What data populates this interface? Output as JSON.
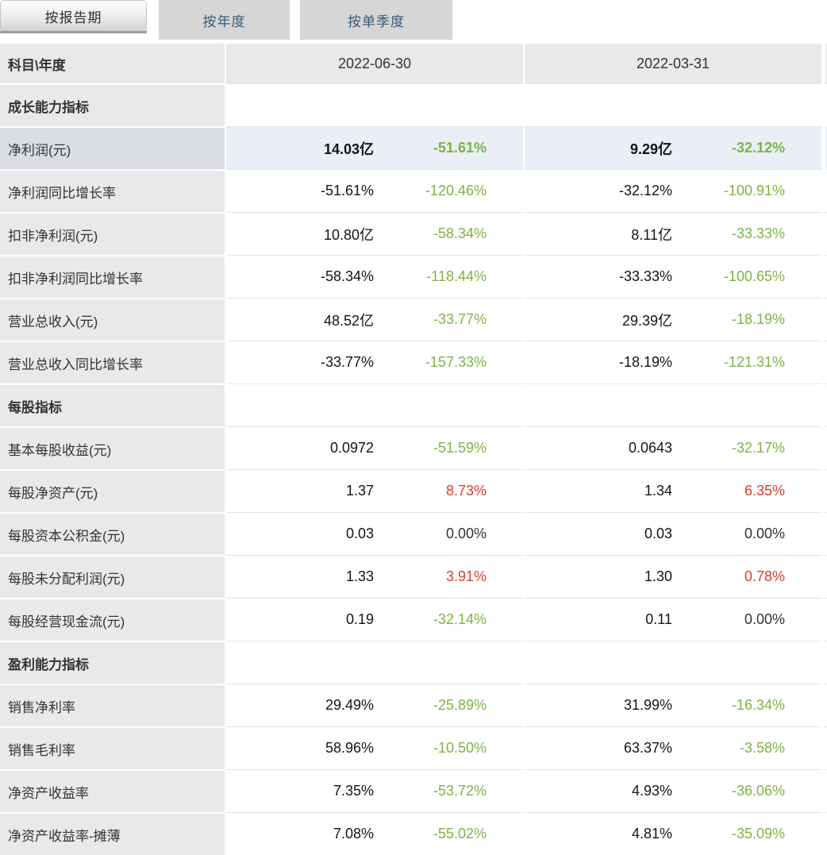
{
  "tabs": [
    {
      "label": "按报告期",
      "active": true
    },
    {
      "label": "按年度",
      "active": false
    },
    {
      "label": "按单季度",
      "active": false
    }
  ],
  "header": {
    "label": "科目\\年度",
    "columns": [
      "2022-06-30",
      "2022-03-31"
    ]
  },
  "colors": {
    "positive_change_red": "#e23a2c",
    "negative_change_green": "#7cb442",
    "highlight_row_blue": "#e9eff5",
    "highlight_label_grey": "#d9dde1",
    "label_column_grey": "#e9e9e9",
    "inactive_tab_grey": "#d6d6d6",
    "tab_text_blue": "#3d5876"
  },
  "rows": [
    {
      "type": "section",
      "label": "成长能力指标"
    },
    {
      "type": "data",
      "label": "净利润(元)",
      "highlight": true,
      "cols": [
        {
          "value": "14.03亿",
          "pct": "-51.61%",
          "pct_color": "green"
        },
        {
          "value": "9.29亿",
          "pct": "-32.12%",
          "pct_color": "green"
        }
      ]
    },
    {
      "type": "data",
      "label": "净利润同比增长率",
      "cols": [
        {
          "value": "-51.61%",
          "pct": "-120.46%",
          "pct_color": "green"
        },
        {
          "value": "-32.12%",
          "pct": "-100.91%",
          "pct_color": "green"
        }
      ]
    },
    {
      "type": "data",
      "label": "扣非净利润(元)",
      "cols": [
        {
          "value": "10.80亿",
          "pct": "-58.34%",
          "pct_color": "green"
        },
        {
          "value": "8.11亿",
          "pct": "-33.33%",
          "pct_color": "green"
        }
      ]
    },
    {
      "type": "data",
      "label": "扣非净利润同比增长率",
      "cols": [
        {
          "value": "-58.34%",
          "pct": "-118.44%",
          "pct_color": "green"
        },
        {
          "value": "-33.33%",
          "pct": "-100.65%",
          "pct_color": "green"
        }
      ]
    },
    {
      "type": "data",
      "label": "营业总收入(元)",
      "cols": [
        {
          "value": "48.52亿",
          "pct": "-33.77%",
          "pct_color": "green"
        },
        {
          "value": "29.39亿",
          "pct": "-18.19%",
          "pct_color": "green"
        }
      ]
    },
    {
      "type": "data",
      "label": "营业总收入同比增长率",
      "cols": [
        {
          "value": "-33.77%",
          "pct": "-157.33%",
          "pct_color": "green"
        },
        {
          "value": "-18.19%",
          "pct": "-121.31%",
          "pct_color": "green"
        }
      ]
    },
    {
      "type": "section",
      "label": "每股指标"
    },
    {
      "type": "data",
      "label": "基本每股收益(元)",
      "cols": [
        {
          "value": "0.0972",
          "pct": "-51.59%",
          "pct_color": "green"
        },
        {
          "value": "0.0643",
          "pct": "-32.17%",
          "pct_color": "green"
        }
      ]
    },
    {
      "type": "data",
      "label": "每股净资产(元)",
      "cols": [
        {
          "value": "1.37",
          "pct": "8.73%",
          "pct_color": "red"
        },
        {
          "value": "1.34",
          "pct": "6.35%",
          "pct_color": "red"
        }
      ]
    },
    {
      "type": "data",
      "label": "每股资本公积金(元)",
      "cols": [
        {
          "value": "0.03",
          "pct": "0.00%",
          "pct_color": "dark"
        },
        {
          "value": "0.03",
          "pct": "0.00%",
          "pct_color": "dark"
        }
      ]
    },
    {
      "type": "data",
      "label": "每股未分配利润(元)",
      "cols": [
        {
          "value": "1.33",
          "pct": "3.91%",
          "pct_color": "red"
        },
        {
          "value": "1.30",
          "pct": "0.78%",
          "pct_color": "red"
        }
      ]
    },
    {
      "type": "data",
      "label": "每股经营现金流(元)",
      "cols": [
        {
          "value": "0.19",
          "pct": "-32.14%",
          "pct_color": "green"
        },
        {
          "value": "0.11",
          "pct": "0.00%",
          "pct_color": "dark"
        }
      ]
    },
    {
      "type": "section",
      "label": "盈利能力指标"
    },
    {
      "type": "data",
      "label": "销售净利率",
      "cols": [
        {
          "value": "29.49%",
          "pct": "-25.89%",
          "pct_color": "green"
        },
        {
          "value": "31.99%",
          "pct": "-16.34%",
          "pct_color": "green"
        }
      ]
    },
    {
      "type": "data",
      "label": "销售毛利率",
      "cols": [
        {
          "value": "58.96%",
          "pct": "-10.50%",
          "pct_color": "green"
        },
        {
          "value": "63.37%",
          "pct": "-3.58%",
          "pct_color": "green"
        }
      ]
    },
    {
      "type": "data",
      "label": "净资产收益率",
      "cols": [
        {
          "value": "7.35%",
          "pct": "-53.72%",
          "pct_color": "green"
        },
        {
          "value": "4.93%",
          "pct": "-36.06%",
          "pct_color": "green"
        }
      ]
    },
    {
      "type": "data",
      "label": "净资产收益率-摊薄",
      "cols": [
        {
          "value": "7.08%",
          "pct": "-55.02%",
          "pct_color": "green"
        },
        {
          "value": "4.81%",
          "pct": "-35.09%",
          "pct_color": "green"
        }
      ]
    }
  ]
}
